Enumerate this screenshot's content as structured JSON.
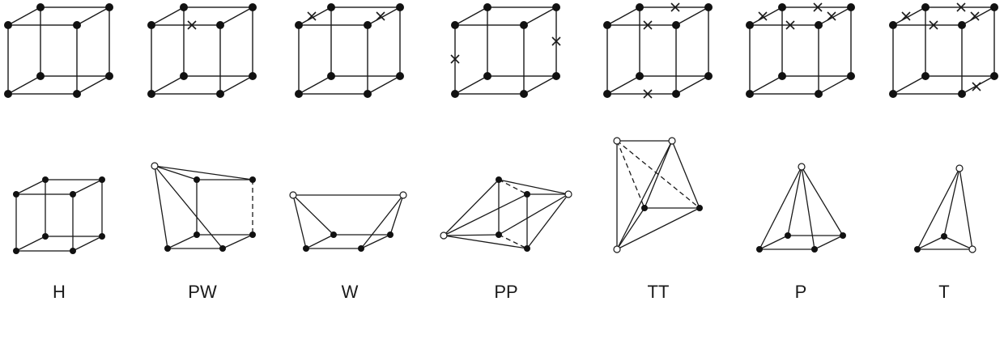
{
  "labels": [
    "H",
    "PW",
    "W",
    "PP",
    "TT",
    "P",
    "T"
  ],
  "colors": {
    "stroke": "#1a1a1a",
    "vertex_fill": "#111111",
    "hollow_fill": "#ffffff",
    "background": "#ffffff"
  },
  "icons": {
    "solid_vertex": "filled-circle",
    "collapsed_vertex": "hollow-circle",
    "collapsed_edge": "cross-mark"
  }
}
